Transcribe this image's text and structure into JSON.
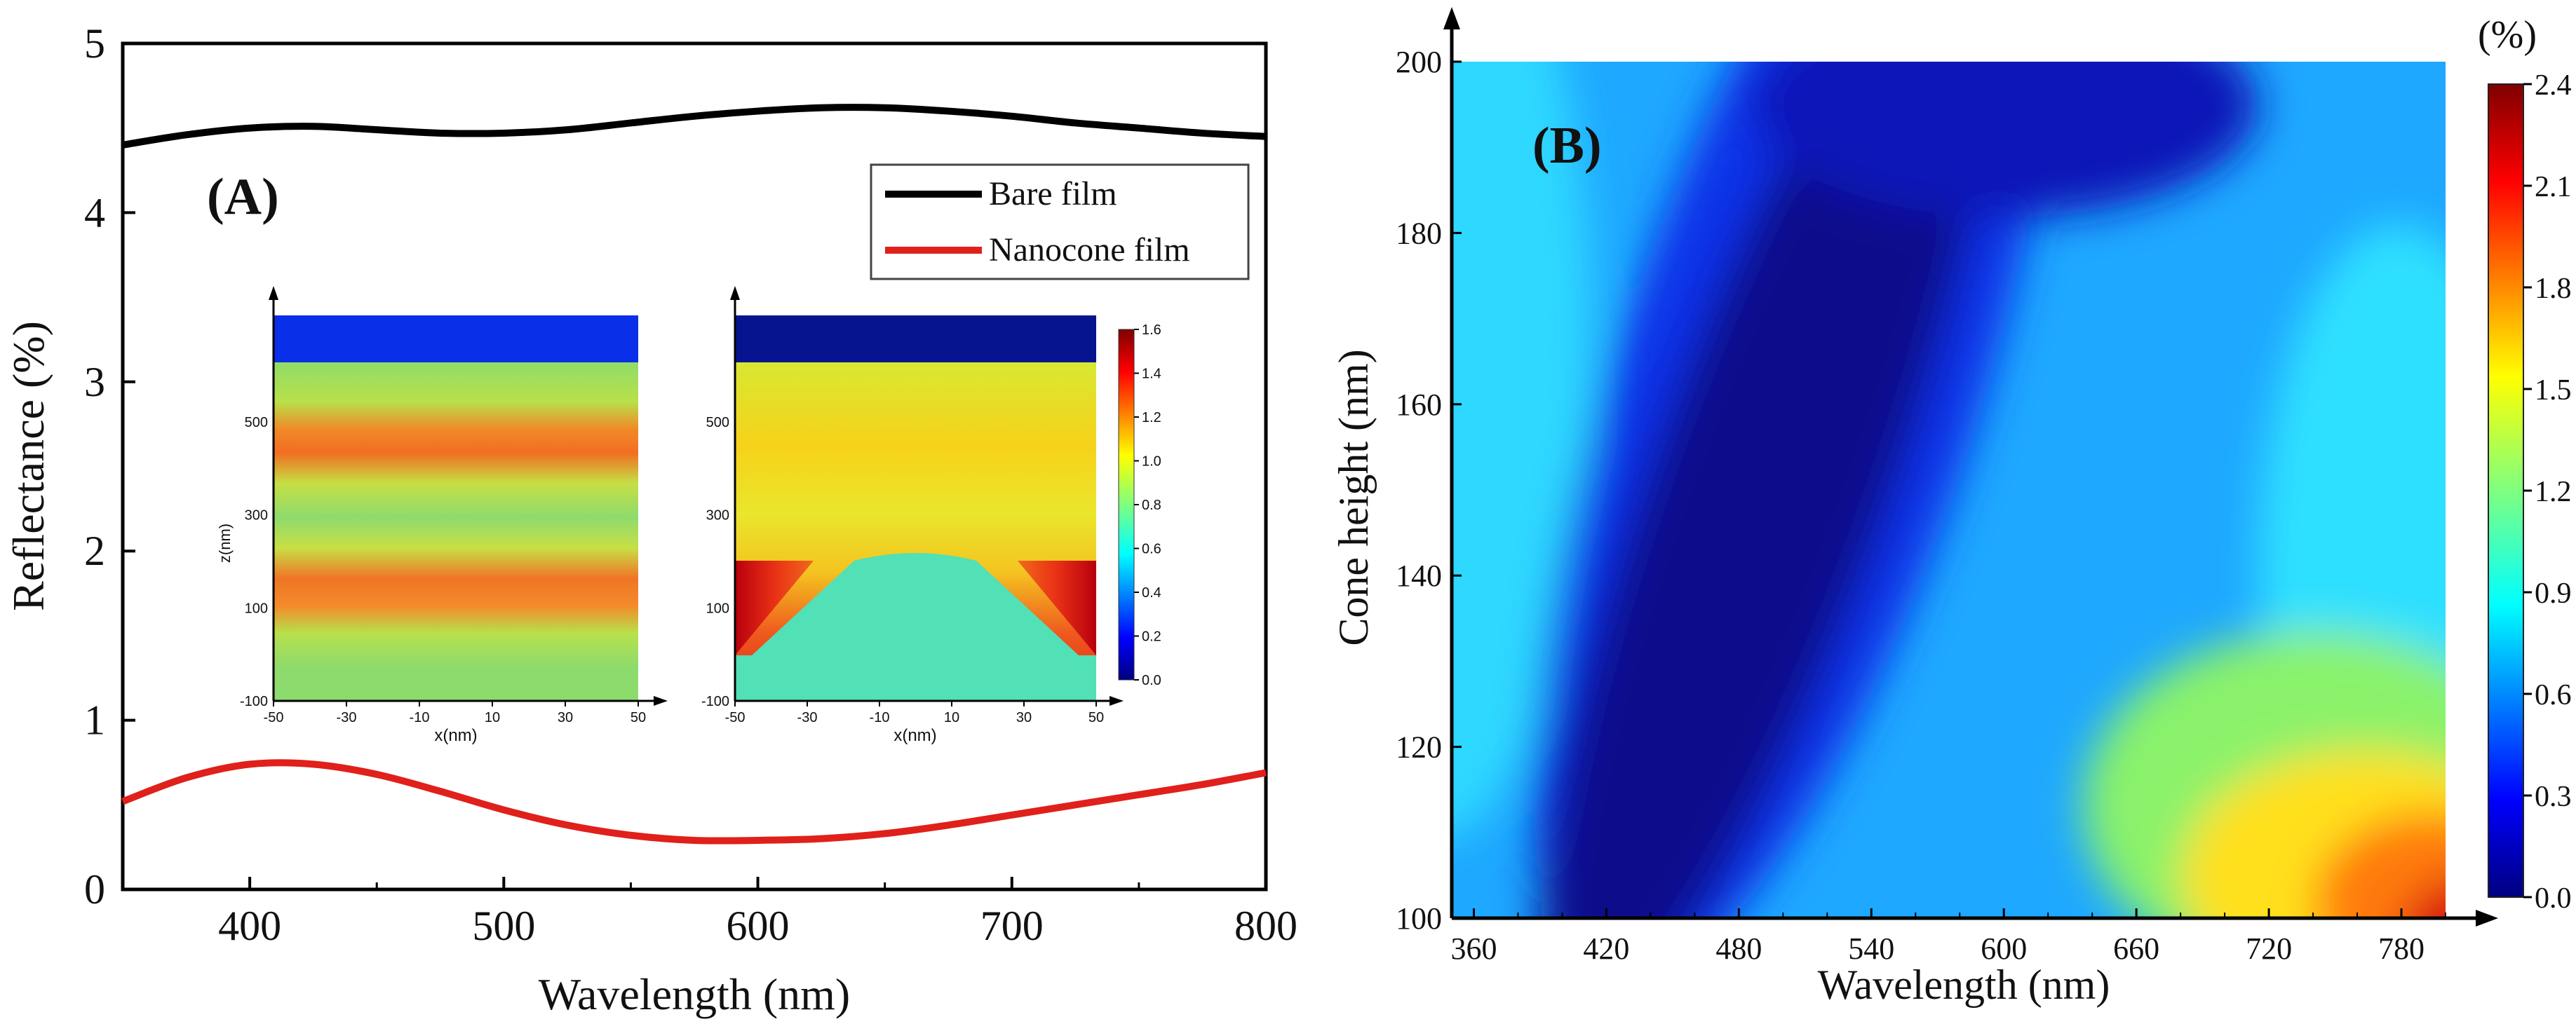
{
  "chart_data": [
    {
      "panel": "A",
      "type": "line",
      "panel_label": "(A)",
      "xlabel": "Wavelength (nm)",
      "ylabel": "Reflectance (%)",
      "xlim": [
        350,
        800
      ],
      "ylim": [
        0,
        5
      ],
      "x_ticks": [
        "400",
        "500",
        "600",
        "700",
        "800"
      ],
      "y_ticks": [
        "0",
        "1",
        "2",
        "3",
        "4",
        "5"
      ],
      "legend_position": "top-right",
      "series": [
        {
          "name": "Bare film",
          "color": "#000000",
          "x": [
            350,
            375,
            400,
            425,
            450,
            475,
            500,
            525,
            550,
            575,
            600,
            625,
            650,
            675,
            700,
            725,
            750,
            775,
            800
          ],
          "values": [
            4.4,
            4.46,
            4.5,
            4.51,
            4.49,
            4.47,
            4.47,
            4.49,
            4.53,
            4.57,
            4.6,
            4.62,
            4.62,
            4.6,
            4.57,
            4.53,
            4.5,
            4.47,
            4.45
          ]
        },
        {
          "name": "Nanocone film",
          "color": "#e0201b",
          "x": [
            350,
            375,
            400,
            425,
            450,
            475,
            500,
            525,
            550,
            575,
            600,
            625,
            650,
            675,
            700,
            725,
            750,
            775,
            800
          ],
          "values": [
            0.52,
            0.66,
            0.74,
            0.74,
            0.68,
            0.58,
            0.47,
            0.38,
            0.32,
            0.29,
            0.29,
            0.3,
            0.33,
            0.38,
            0.44,
            0.5,
            0.56,
            0.62,
            0.69
          ]
        }
      ],
      "insets": [
        {
          "name": "field-map-bare",
          "type": "heatmap",
          "xlabel": "x(nm)",
          "ylabel": "z(nm)",
          "x_ticks": [
            "-50",
            "-30",
            "-10",
            "10",
            "30",
            "50"
          ],
          "y_ticks": [
            "-100",
            "100",
            "300",
            "500"
          ]
        },
        {
          "name": "field-map-nanocone",
          "type": "heatmap",
          "xlabel": "x(nm)",
          "ylabel": "",
          "x_ticks": [
            "-50",
            "-30",
            "-10",
            "10",
            "30",
            "50"
          ],
          "y_ticks": [
            "-100",
            "100",
            "300",
            "500"
          ],
          "colorbar_ticks": [
            "0.0",
            "0.2",
            "0.4",
            "0.6",
            "0.8",
            "1.0",
            "1.2",
            "1.4",
            "1.6"
          ]
        }
      ]
    },
    {
      "panel": "B",
      "type": "heatmap",
      "panel_label": "(B)",
      "xlabel": "Wavelength (nm)",
      "ylabel": "Cone height (nm)",
      "x_ticks": [
        "360",
        "420",
        "480",
        "540",
        "600",
        "660",
        "720",
        "780"
      ],
      "y_ticks": [
        "100",
        "120",
        "140",
        "160",
        "180",
        "200"
      ],
      "xlim": [
        350,
        800
      ],
      "ylim": [
        100,
        200
      ],
      "colorbar_unit": "(%)",
      "colorbar_ticks": [
        "0.0",
        "0.3",
        "0.6",
        "0.9",
        "1.2",
        "1.5",
        "1.8",
        "2.1",
        "2.4"
      ],
      "colorbar_range": [
        0,
        2.4
      ]
    }
  ]
}
